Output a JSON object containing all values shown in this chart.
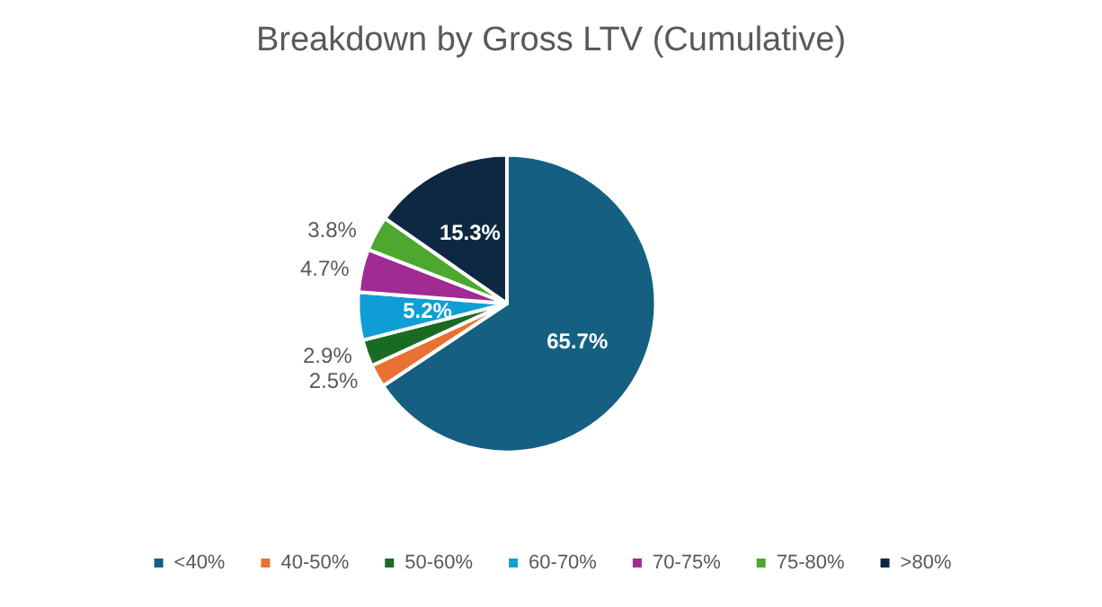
{
  "chart_data": {
    "type": "pie",
    "title": "Breakdown by Gross LTV (Cumulative)",
    "categories": [
      "<40%",
      "40-50%",
      "50-60%",
      "60-70%",
      "70-75%",
      "75-80%",
      ">80%"
    ],
    "values": [
      65.7,
      2.5,
      2.9,
      5.2,
      4.7,
      3.8,
      15.3
    ],
    "colors": [
      "#156082",
      "#e97132",
      "#196b24",
      "#0f9ed5",
      "#a02b93",
      "#4ea72e",
      "#0e2841"
    ],
    "value_labels": [
      "65.7%",
      "2.5%",
      "2.9%",
      "5.2%",
      "4.7%",
      "3.8%",
      "15.3%"
    ],
    "legend": "bottom"
  }
}
